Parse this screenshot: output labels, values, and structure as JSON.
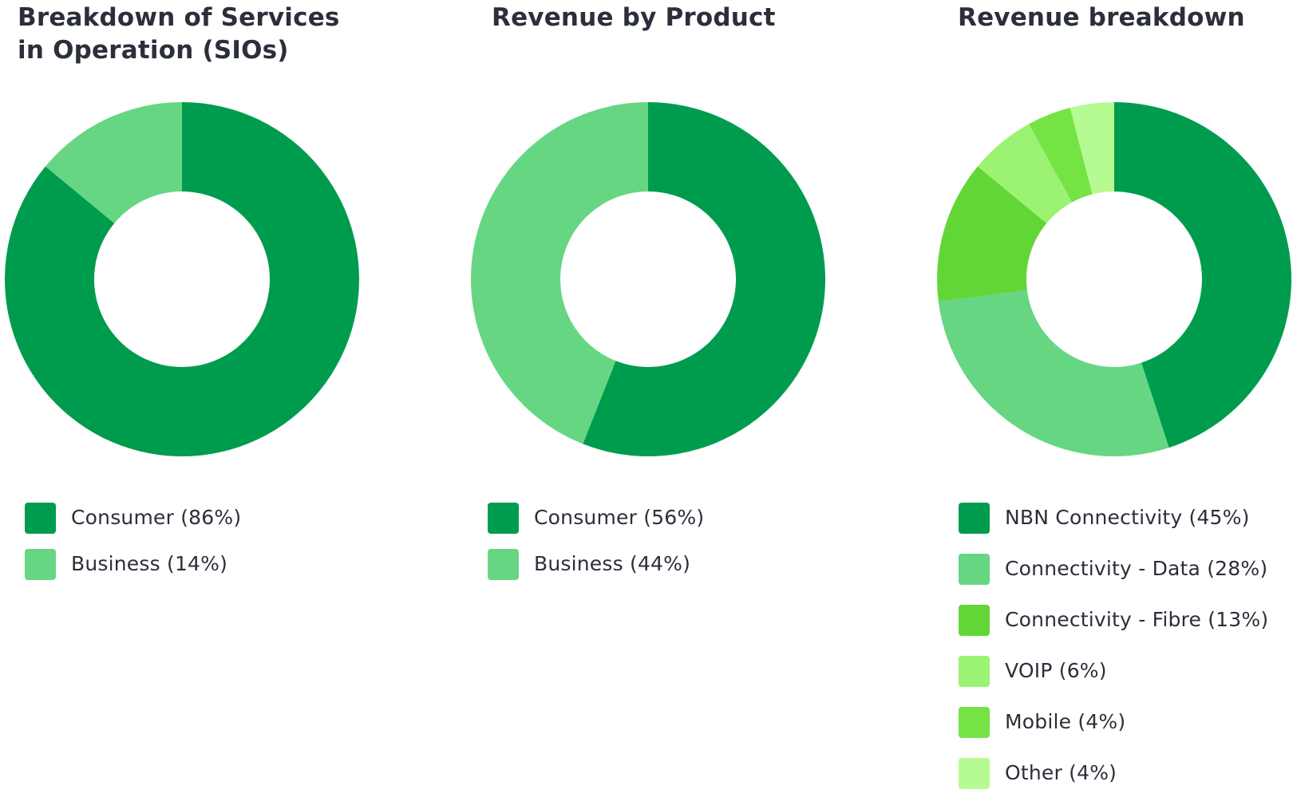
{
  "chart_data": [
    {
      "type": "pie",
      "donut": true,
      "title": "Breakdown of Services in Operation (SIOs)",
      "categories": [
        "Consumer",
        "Business"
      ],
      "values": [
        86,
        14
      ],
      "legend_labels": [
        "Consumer (86%)",
        "Business (14%)"
      ],
      "colors": [
        "#009c4e",
        "#66d683"
      ],
      "legend": "bottom-left"
    },
    {
      "type": "pie",
      "donut": true,
      "title": "Revenue by Product",
      "categories": [
        "Consumer",
        "Business"
      ],
      "values": [
        56,
        44
      ],
      "legend_labels": [
        "Consumer (56%)",
        "Business (44%)"
      ],
      "colors": [
        "#009c4e",
        "#66d683"
      ],
      "legend": "bottom-left"
    },
    {
      "type": "pie",
      "donut": true,
      "title": "Revenue breakdown",
      "categories": [
        "NBN Connectivity",
        "Connectivity - Data",
        "Connectivity - Fibre",
        "VOIP",
        "Mobile",
        "Other"
      ],
      "values": [
        45,
        28,
        13,
        6,
        4,
        4
      ],
      "legend_labels": [
        "NBN Connectivity (45%)",
        "Connectivity - Data (28%)",
        "Connectivity - Fibre (13%)",
        "VOIP (6%)",
        "Mobile (4%)",
        "Other (4%)"
      ],
      "colors": [
        "#009c4e",
        "#66d683",
        "#63d637",
        "#9cf272",
        "#76e344",
        "#b6fb92"
      ],
      "legend": "bottom-left"
    }
  ]
}
